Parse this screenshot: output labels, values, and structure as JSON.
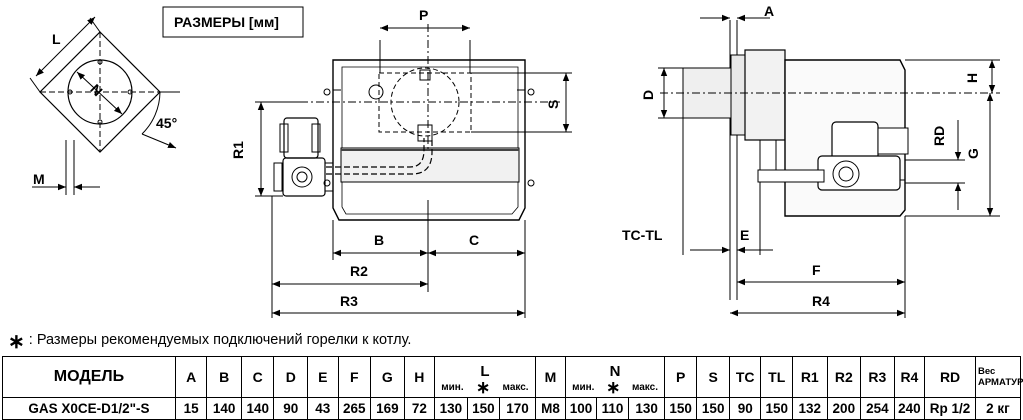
{
  "header": {
    "dimensions_title": "РАЗМЕРЫ [мм]"
  },
  "footnote": {
    "marker": "∗",
    "text": ": Размеры рекомендуемых подключений горелки к котлу."
  },
  "labels": {
    "L": "L",
    "N": "N",
    "M": "M",
    "angle": "45°",
    "P": "P",
    "S": "S",
    "R1": "R1",
    "B": "B",
    "C": "C",
    "R2": "R2",
    "R3": "R3",
    "A": "A",
    "D": "D",
    "H": "H",
    "RD": "RD",
    "G": "G",
    "TC_TL": "TC-TL",
    "E": "E",
    "F": "F",
    "R4": "R4"
  },
  "table": {
    "model_header": "МОДЕЛЬ",
    "columns": [
      "A",
      "B",
      "C",
      "D",
      "E",
      "F",
      "G",
      "H",
      "L",
      "M",
      "N",
      "P",
      "S",
      "TC",
      "TL",
      "R1",
      "R2",
      "R3",
      "R4",
      "RD"
    ],
    "subheaders": {
      "min": "мин.",
      "star": "∗",
      "max": "макс."
    },
    "weight_header_1": "Вес",
    "weight_header_2": "АРМАТУРЫ",
    "row": {
      "model": "GAS X0CE-D1/2\"-S",
      "A": "15",
      "B": "140",
      "C": "140",
      "D": "90",
      "E": "43",
      "F": "265",
      "G": "169",
      "H": "72",
      "L_min": "130",
      "L_star": "150",
      "L_max": "170",
      "M": "M8",
      "N_min": "100",
      "N_star": "110",
      "N_max": "130",
      "P": "150",
      "S": "150",
      "TC": "90",
      "TL": "150",
      "R1": "132",
      "R2": "200",
      "R3": "254",
      "R4": "240",
      "RD": "Rp 1/2",
      "weight": "2 кг"
    }
  }
}
